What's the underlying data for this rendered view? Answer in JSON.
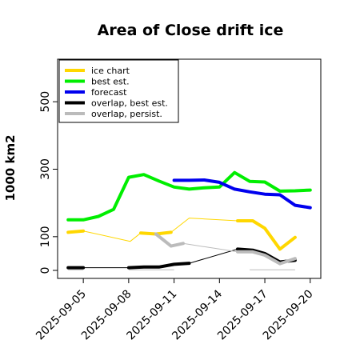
{
  "chart_data": {
    "type": "line",
    "title": "Area of Close drift ice",
    "ylabel": "1000 km2",
    "xlabel": "",
    "ylim": [
      0,
      600
    ],
    "yticks": [
      0,
      100,
      300,
      500
    ],
    "xlim": [
      3.3,
      20.7
    ],
    "xtick_positions": [
      5,
      8,
      11,
      14,
      17,
      20
    ],
    "xtick_labels": [
      "2025-09-05",
      "2025-09-08",
      "2025-09-11",
      "2025-09-14",
      "2025-09-17",
      "2025-09-20"
    ],
    "xtick_colors": [
      "#000000",
      "#000000",
      "#228B22",
      "#000000",
      "#000000",
      "#000000"
    ],
    "legend_position": "upper-left",
    "series": [
      {
        "name": "ice chart",
        "color": "#FFD700",
        "width": 4,
        "segments": [
          [
            [
              4,
              113
            ],
            [
              5,
              117
            ]
          ],
          [
            [
              8.8,
              111
            ],
            [
              9.8,
              108
            ],
            [
              10.8,
              113
            ]
          ],
          [
            [
              12,
              155
            ]
          ],
          [
            [
              15.2,
              147
            ],
            [
              16.2,
              147
            ],
            [
              17,
              125
            ],
            [
              18,
              63
            ],
            [
              19,
              98
            ]
          ]
        ]
      },
      {
        "name": "best est.",
        "color": "#00EE00",
        "width": 4,
        "segments": [
          [
            [
              4,
              150
            ],
            [
              5,
              150
            ],
            [
              6,
              160
            ],
            [
              7,
              181
            ],
            [
              8,
              276
            ],
            [
              9,
              284
            ],
            [
              10,
              265
            ],
            [
              11,
              247
            ],
            [
              12,
              241
            ],
            [
              13,
              245
            ],
            [
              14,
              247
            ],
            [
              15,
              290
            ],
            [
              16,
              264
            ],
            [
              17,
              262
            ],
            [
              18,
              235
            ],
            [
              19,
              236
            ],
            [
              20,
              238
            ]
          ]
        ]
      },
      {
        "name": "forecast",
        "color": "#0000EE",
        "width": 4,
        "segments": [
          [
            [
              11,
              267
            ],
            [
              12,
              267
            ],
            [
              13,
              268
            ],
            [
              14,
              261
            ],
            [
              15,
              241
            ],
            [
              16,
              233
            ],
            [
              17,
              226
            ],
            [
              18,
              224
            ],
            [
              19,
              193
            ],
            [
              20,
              186
            ]
          ]
        ]
      },
      {
        "name": "overlap, best est.",
        "color": "#000000",
        "width": 4,
        "segments": [
          [
            [
              4,
              8
            ],
            [
              5,
              8
            ]
          ],
          [
            [
              8,
              8
            ],
            [
              9,
              10
            ],
            [
              10,
              10
            ],
            [
              11,
              18
            ],
            [
              12,
              21
            ]
          ],
          [
            [
              15.2,
              63
            ],
            [
              16.2,
              60
            ],
            [
              17,
              50
            ],
            [
              18,
              25
            ],
            [
              19,
              30
            ]
          ]
        ]
      },
      {
        "name": "overlap, persist.",
        "color": "#BBBBBB",
        "width": 4,
        "segments": [
          [
            [
              9.8,
              108
            ],
            [
              10.8,
              72
            ],
            [
              11.6,
              80
            ]
          ],
          [
            [
              15.2,
              55
            ],
            [
              16.2,
              55
            ],
            [
              17,
              45
            ],
            [
              18,
              20
            ],
            [
              19,
              35
            ]
          ]
        ]
      },
      {
        "name": "",
        "color": "#FFD700",
        "width": 1,
        "segments": [
          [
            [
              5,
              117
            ],
            [
              8.1,
              86
            ],
            [
              8.8,
              111
            ]
          ],
          [
            [
              10.8,
              113
            ],
            [
              12,
              155
            ],
            [
              15.2,
              147
            ]
          ]
        ]
      },
      {
        "name": "",
        "color": "#000000",
        "width": 1,
        "segments": [
          [
            [
              5,
              8
            ],
            [
              8,
              8
            ]
          ],
          [
            [
              12,
              21
            ],
            [
              15.2,
              63
            ]
          ]
        ]
      },
      {
        "name": "",
        "color": "#BBBBBB",
        "width": 1,
        "segments": [
          [
            [
              11.6,
              80
            ],
            [
              15.2,
              55
            ]
          ],
          [
            [
              4,
              2
            ],
            [
              5,
              2
            ]
          ],
          [
            [
              8,
              2
            ],
            [
              11,
              2
            ]
          ],
          [
            [
              16,
              2
            ],
            [
              19,
              2
            ]
          ]
        ]
      }
    ]
  }
}
